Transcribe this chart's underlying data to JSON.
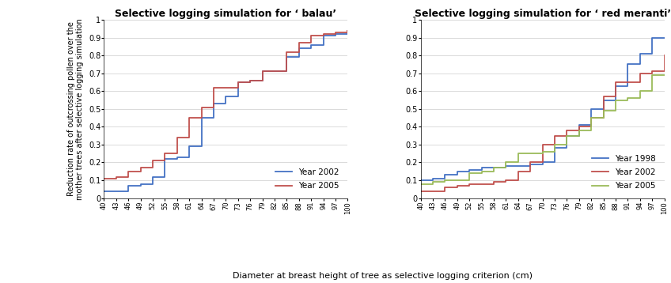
{
  "x_ticks": [
    40,
    43,
    46,
    49,
    52,
    55,
    58,
    61,
    64,
    67,
    70,
    73,
    76,
    79,
    82,
    85,
    88,
    91,
    94,
    97,
    100
  ],
  "balau_title": "Selective logging simulation for ‘ balau’",
  "meranti_title": "Selective logging simulation for ‘ red meranti’",
  "xlabel": "Diameter at breast height of tree as selective logging criterion (cm)",
  "ylabel_line1": "Reduction rate of outcrossing pollen over the",
  "ylabel_line2": "mother trees after selective logging simulation",
  "balau_2002": [
    0.04,
    0.04,
    0.07,
    0.08,
    0.12,
    0.22,
    0.23,
    0.29,
    0.45,
    0.53,
    0.57,
    0.65,
    0.66,
    0.71,
    0.71,
    0.79,
    0.84,
    0.86,
    0.91,
    0.92,
    0.94
  ],
  "balau_2005": [
    0.11,
    0.12,
    0.15,
    0.17,
    0.21,
    0.25,
    0.34,
    0.45,
    0.51,
    0.62,
    0.62,
    0.65,
    0.66,
    0.71,
    0.71,
    0.82,
    0.87,
    0.91,
    0.92,
    0.93,
    0.94
  ],
  "meranti_1998": [
    0.1,
    0.11,
    0.13,
    0.15,
    0.16,
    0.17,
    0.17,
    0.18,
    0.18,
    0.19,
    0.2,
    0.28,
    0.35,
    0.41,
    0.5,
    0.55,
    0.63,
    0.75,
    0.81,
    0.9,
    0.9
  ],
  "meranti_2002": [
    0.04,
    0.04,
    0.06,
    0.07,
    0.08,
    0.08,
    0.09,
    0.1,
    0.15,
    0.2,
    0.3,
    0.35,
    0.38,
    0.4,
    0.45,
    0.57,
    0.65,
    0.65,
    0.7,
    0.71,
    0.8
  ],
  "meranti_2005": [
    0.08,
    0.09,
    0.1,
    0.1,
    0.14,
    0.15,
    0.17,
    0.2,
    0.25,
    0.25,
    0.26,
    0.3,
    0.35,
    0.38,
    0.45,
    0.49,
    0.55,
    0.56,
    0.6,
    0.69,
    0.69
  ],
  "color_blue": "#4472C4",
  "color_red": "#C0504D",
  "color_green": "#9BBB59",
  "ylim_balau": [
    0,
    1.0
  ],
  "ylim_meranti": [
    0,
    1.0
  ],
  "xlim": [
    40,
    100
  ],
  "yticks": [
    0,
    0.1,
    0.2,
    0.3,
    0.4,
    0.5,
    0.6,
    0.7,
    0.8,
    0.9,
    1
  ],
  "ytick_labels_balau": [
    "0",
    "0.1",
    "0.2",
    "0.3",
    "0.4",
    "0.5",
    "0.6",
    "0.7",
    "0.8",
    "0.9",
    "1"
  ],
  "ytick_labels_meranti": [
    "0",
    "0.1",
    "0.2",
    "0.3",
    "0.4",
    "0.5",
    "0.6",
    "0.7",
    "0.8",
    "0.9",
    "1"
  ]
}
